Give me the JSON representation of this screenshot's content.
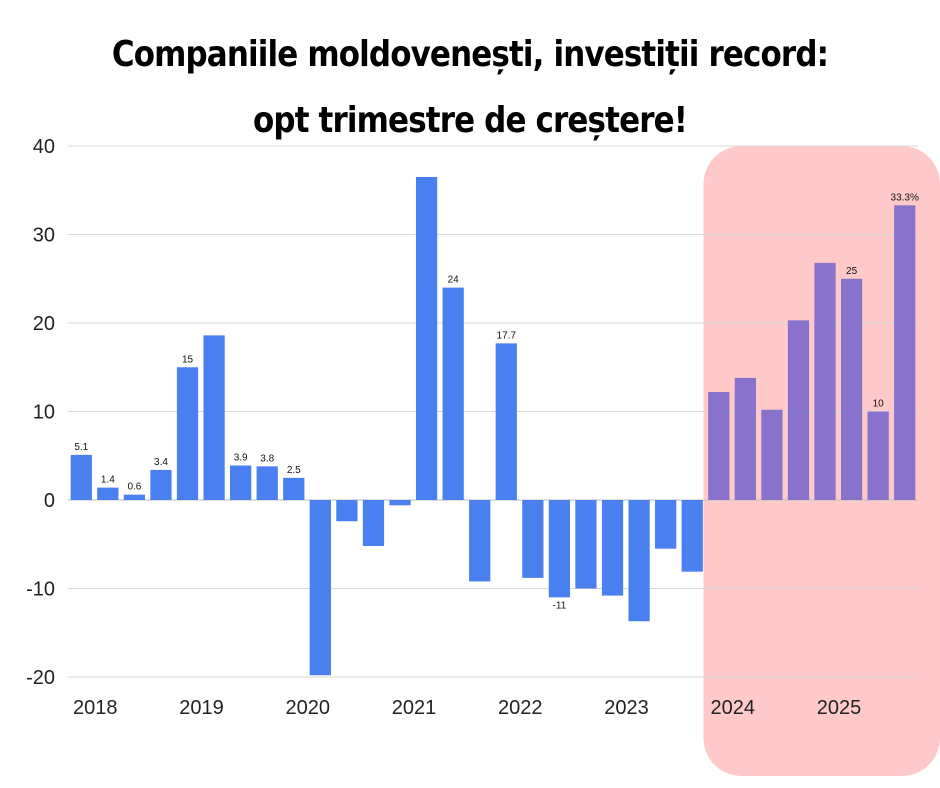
{
  "title": {
    "line1": "Companiile moldovenești, investiții record:",
    "line2": "opt trimestre de creștere!"
  },
  "chart_data": {
    "type": "bar",
    "title": "Companiile moldovenești, investiții record: opt trimestre de creștere!",
    "xlabel": "",
    "ylabel": "",
    "ylim": [
      -20,
      40
    ],
    "yticks": [
      40,
      30,
      20,
      10,
      0,
      -10,
      -20
    ],
    "grid": true,
    "year_labels": [
      "2018",
      "2019",
      "2020",
      "2021",
      "2022",
      "2023",
      "2024",
      "2025"
    ],
    "values": [
      5.1,
      1.4,
      0.6,
      3.4,
      15,
      18.6,
      3.9,
      3.8,
      2.5,
      -19.8,
      -2.4,
      -5.2,
      -0.6,
      36.5,
      24,
      -9.2,
      17.7,
      -8.8,
      -11,
      -10,
      -10.8,
      -13.7,
      -5.5,
      -8.1,
      12.2,
      13.8,
      10.2,
      20.3,
      26.8,
      25,
      10,
      33.3
    ],
    "data_labels": [
      "5.1",
      "1.4",
      "0.6",
      "3.4",
      "15",
      "",
      "3.9",
      "3.8",
      "2.5",
      "",
      "",
      "",
      "",
      "",
      "24",
      "",
      "17.7",
      "",
      "-11",
      "",
      "",
      "",
      "",
      "",
      "",
      "",
      "",
      "",
      "",
      "25",
      "10",
      "33.3%"
    ],
    "colors": {
      "normal": "#4a7ff0",
      "highlight": "#8872cc",
      "highlight_band": "#ffc9c9",
      "grid": "#d9d9d9"
    },
    "highlight_from_index": 24
  }
}
